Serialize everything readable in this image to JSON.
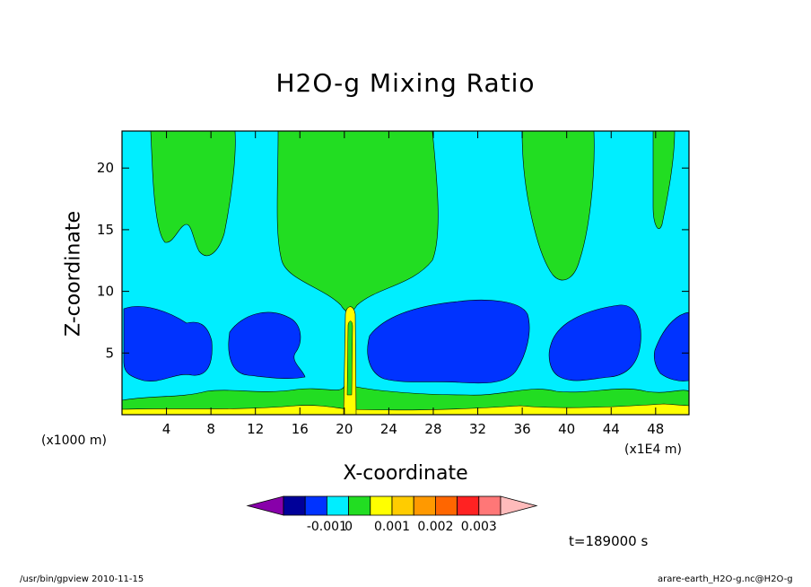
{
  "chart_data": {
    "type": "heatmap",
    "title": "H2O-g Mixing Ratio",
    "xlabel": "X-coordinate",
    "ylabel": "Z-coordinate",
    "x_unit_left": "(x1000 m)",
    "x_unit_right": "(x1E4 m)",
    "xlim": [
      0,
      51
    ],
    "ylim": [
      0,
      23
    ],
    "x_ticks": [
      4,
      8,
      12,
      16,
      20,
      24,
      28,
      32,
      36,
      40,
      44,
      48
    ],
    "y_ticks": [
      5,
      10,
      15,
      20
    ],
    "colorbar": {
      "colors": [
        "#8800aa",
        "#000099",
        "#0033ff",
        "#00eeff",
        "#22dd22",
        "#ffff00",
        "#ffcc00",
        "#ff9900",
        "#ff6600",
        "#ff2222",
        "#ff7777",
        "#ffbbbb"
      ],
      "tick_labels": [
        "-0.001",
        "0",
        "0.001",
        "0.002",
        "0.003"
      ],
      "tick_values": [
        -0.001,
        0,
        0.001,
        0.002,
        0.003
      ]
    },
    "time_label": "t=189000 s",
    "footer_left": "/usr/bin/gpview  2010-11-15",
    "footer_right": "arare-earth_H2O-g.nc@H2O-g"
  }
}
